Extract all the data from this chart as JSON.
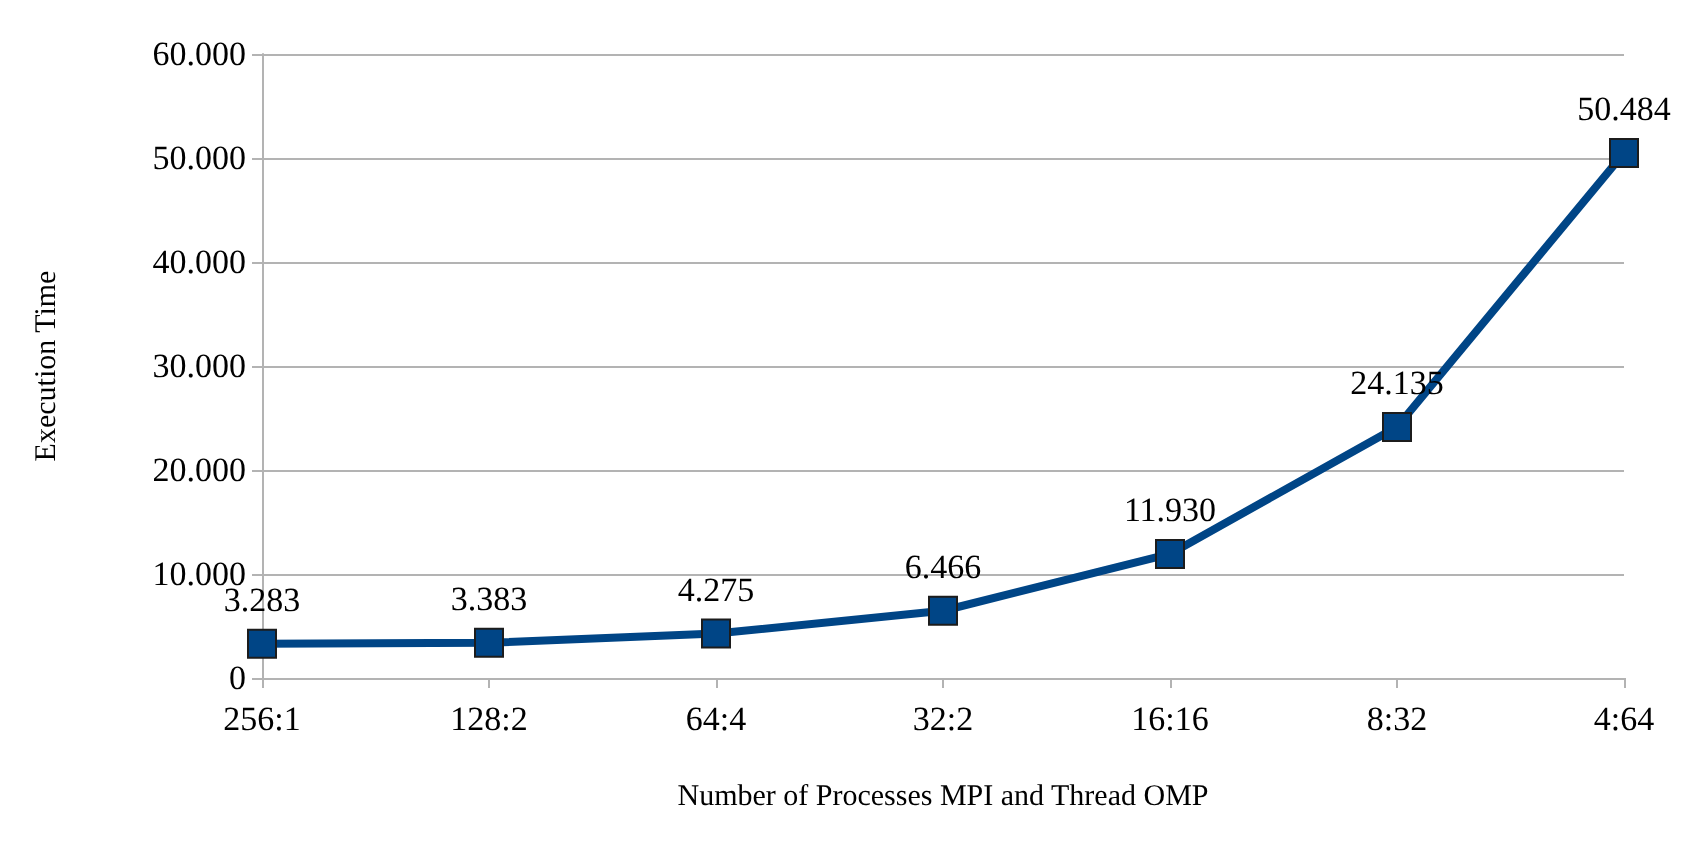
{
  "chart_data": {
    "type": "line",
    "xlabel": "Number of Processes MPI and Thread OMP",
    "ylabel": "Execution Time",
    "categories": [
      "256:1",
      "128:2",
      "64:4",
      "32:2",
      "16:16",
      "8:32",
      "4:64"
    ],
    "series": [
      {
        "color": "#004586",
        "values": [
          3283,
          3383,
          4275,
          6466,
          11930,
          24135,
          50484
        ]
      }
    ],
    "value_labels": [
      "3.283",
      "3.383",
      "4.275",
      "6.466",
      "11.930",
      "24.135",
      "50.484"
    ],
    "ylim": [
      0,
      60000
    ],
    "yticks": [
      0,
      {
        "value": 10000,
        "label": "10.000"
      },
      {
        "value": 20000,
        "label": "20.000"
      },
      {
        "value": 30000,
        "label": "30.000"
      },
      {
        "value": 40000,
        "label": "40.000"
      },
      {
        "value": 50000,
        "label": "50.000"
      },
      {
        "value": 60000,
        "label": "60.000"
      }
    ],
    "grid": "y",
    "marker": "square",
    "line_style": "solid"
  }
}
